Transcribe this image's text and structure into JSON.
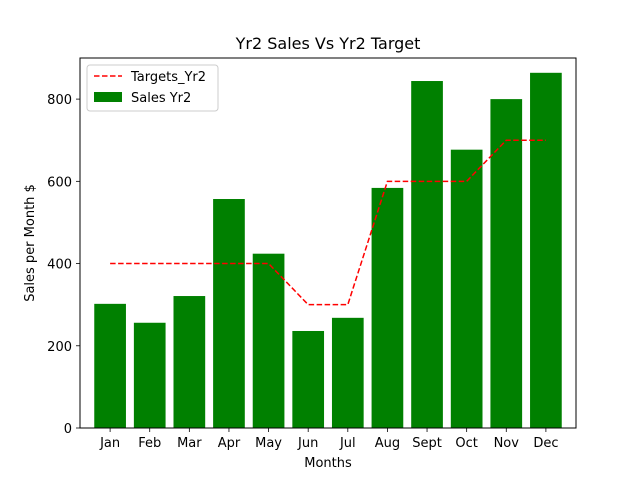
{
  "chart_data": {
    "type": "bar",
    "title": "Yr2 Sales Vs Yr2 Target",
    "xlabel": "Months",
    "ylabel": "Sales per Month $",
    "categories": [
      "Jan",
      "Feb",
      "Mar",
      "Apr",
      "May",
      "Jun",
      "Jul",
      "Aug",
      "Sept",
      "Oct",
      "Nov",
      "Dec"
    ],
    "ylim": [
      0,
      900
    ],
    "yticks": [
      "0",
      "200",
      "400",
      "600",
      "800"
    ],
    "grid": false,
    "legend_position": "upper-left",
    "series": [
      {
        "name": "Sales Yr2",
        "type": "bar",
        "color": "#008000",
        "values": [
          302,
          256,
          321,
          557,
          424,
          236,
          268,
          584,
          844,
          677,
          800,
          864
        ]
      },
      {
        "name": "Targets_Yr2",
        "type": "line",
        "style": "dashed",
        "color": "#ff0000",
        "values": [
          400,
          400,
          400,
          400,
          400,
          300,
          300,
          600,
          600,
          600,
          700,
          700
        ]
      }
    ]
  }
}
